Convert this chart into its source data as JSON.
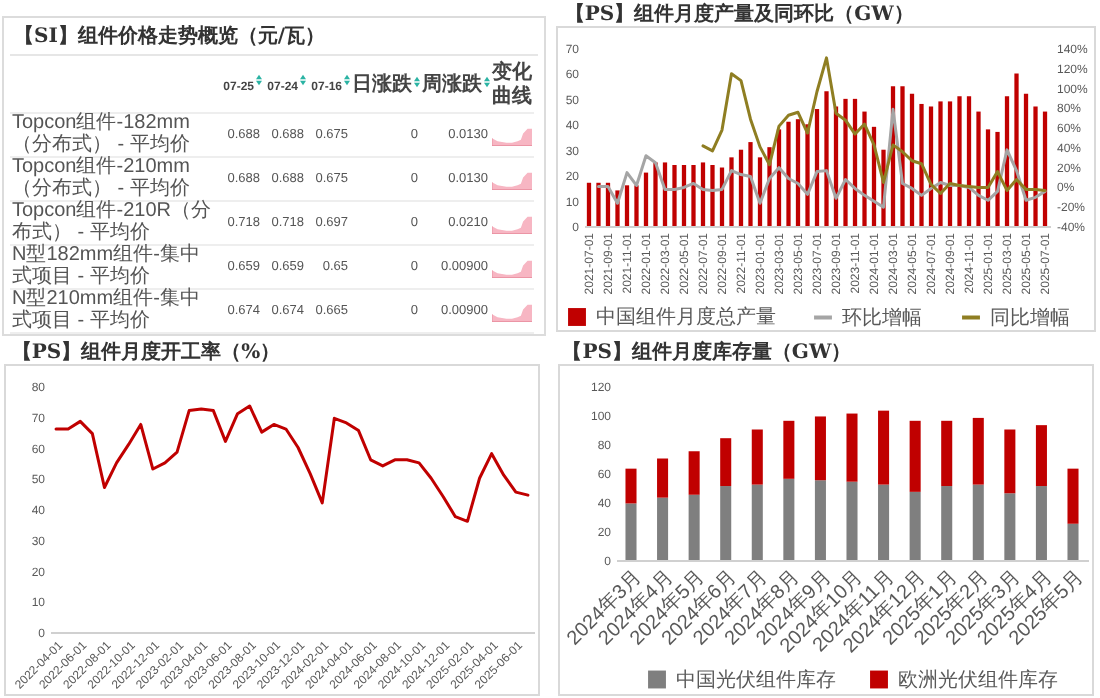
{
  "chart_data": [
    {
      "type": "other",
      "title": "【SI】组件价格走势概览（元/瓦）",
      "categories": [
        "07-25",
        "07-24",
        "07-16",
        "日涨跌",
        "周涨跌",
        "变化曲线"
      ],
      "y_categories": [
        "Topcon组件-182mm（分布式） - 平均价",
        "Topcon组件-210mm（分布式） - 平均价",
        "Topcon组件-210R（分布式） - 平均价",
        "N型182mm组件-集中式项目 - 平均价",
        "N型210mm组件-集中式项目 - 平均价"
      ],
      "cell_labels": [
        [
          "0.688",
          "0.688",
          "0.675",
          "0",
          "0.0130",
          null
        ],
        [
          "0.688",
          "0.688",
          "0.675",
          "0",
          "0.0130",
          null
        ],
        [
          "0.718",
          "0.718",
          "0.697",
          "0",
          "0.0210",
          null
        ],
        [
          "0.659",
          "0.659",
          "0.65",
          "0",
          "0.00900",
          null
        ],
        [
          "0.674",
          "0.674",
          "0.665",
          "0",
          "0.00900",
          null
        ]
      ]
    },
    {
      "type": "bar",
      "title": "【PS】组件月度产量及同环比（GW）",
      "categories": [
        "2021-07-01",
        null,
        "2021-09-01",
        null,
        "2021-11-01",
        null,
        "2022-01-01",
        null,
        "2022-03-01",
        null,
        "2022-05-01",
        null,
        "2022-07-01",
        null,
        "2022-09-01",
        null,
        "2022-11-01",
        null,
        "2023-01-01",
        null,
        "2023-03-01",
        null,
        "2023-05-01",
        null,
        "2023-07-01",
        null,
        "2023-09-01",
        null,
        "2023-11-01",
        null,
        "2024-01-01",
        null,
        "2024-03-01",
        null,
        "2024-05-01",
        null,
        "2024-07-01",
        null,
        "2024-09-01",
        null,
        "2024-11-01",
        null,
        "2025-01-01",
        null,
        "2025-03-01",
        null,
        "2025-05-01",
        null,
        "2025-07-01"
      ],
      "series": [
        {
          "name": "中国组件月度总产量",
          "type": "bar",
          "color": "#c00000",
          "values": [
            17,
            17,
            17,
            14,
            16,
            16,
            21,
            25,
            25,
            24,
            24,
            24,
            25,
            24,
            23,
            27,
            30,
            33,
            27,
            31,
            38,
            41,
            42,
            40,
            46,
            53,
            47,
            50,
            50,
            45,
            39,
            30,
            55,
            55,
            52,
            48,
            47,
            49,
            49,
            51,
            51,
            45,
            38,
            37,
            51,
            60,
            52,
            47,
            45
          ]
        },
        {
          "name": "环比增幅",
          "type": "line",
          "axis": "y2",
          "color": "#a5a5a5",
          "values": [
            null,
            0,
            0,
            -17,
            14,
            1,
            31,
            24,
            -3,
            -3,
            -1,
            3,
            -3,
            -4,
            -3,
            16,
            12,
            10,
            -17,
            8,
            19,
            8,
            3,
            -8,
            15,
            16,
            -12,
            7,
            -2,
            -9,
            -15,
            -21,
            78,
            3,
            -2,
            -9,
            -2,
            4,
            1,
            1,
            -1,
            -9,
            -14,
            -5,
            37,
            16,
            -14,
            -11,
            -5
          ]
        },
        {
          "name": "同比增幅",
          "type": "line",
          "axis": "y2",
          "color": "#8f7e22",
          "values": [
            null,
            null,
            null,
            null,
            null,
            null,
            null,
            null,
            null,
            null,
            null,
            null,
            41,
            36,
            57,
            114,
            107,
            68,
            40,
            22,
            61,
            72,
            75,
            54,
            96,
            130,
            74,
            67,
            53,
            63,
            42,
            4,
            42,
            35,
            26,
            23,
            2,
            -7,
            3,
            1,
            0,
            -1,
            -1,
            15,
            -4,
            7,
            -3,
            -3,
            -4
          ]
        }
      ],
      "ylim": [
        0,
        70
      ],
      "yticks": [
        0,
        10,
        20,
        30,
        40,
        50,
        60,
        70
      ],
      "y2lim": [
        -40,
        140
      ],
      "y2ticks": [
        {
          "value": -40,
          "label": "-40%"
        },
        {
          "value": -20,
          "label": "-20%"
        },
        {
          "value": 0,
          "label": "0%"
        },
        {
          "value": 20,
          "label": "20%"
        },
        {
          "value": 40,
          "label": "40%"
        },
        {
          "value": 60,
          "label": "60%"
        },
        {
          "value": 80,
          "label": "80%"
        },
        {
          "value": 100,
          "label": "100%"
        },
        {
          "value": 120,
          "label": "120%"
        },
        {
          "value": 140,
          "label": "140%"
        }
      ],
      "legend": "bottom"
    },
    {
      "type": "line",
      "title": "【PS】组件月度开工率（%）",
      "categories": [
        "2022-04-01",
        null,
        "2022-06-01",
        null,
        "2022-08-01",
        null,
        "2022-10-01",
        null,
        "2022-12-01",
        null,
        "2023-02-01",
        null,
        "2023-04-01",
        null,
        "2023-06-01",
        null,
        "2023-08-01",
        null,
        "2023-10-01",
        null,
        "2023-12-01",
        null,
        "2024-02-01",
        null,
        "2024-04-01",
        null,
        "2024-06-01",
        null,
        "2024-08-01",
        null,
        "2024-10-01",
        null,
        "2024-12-01",
        null,
        "2025-02-01",
        null,
        "2025-04-01",
        null,
        "2025-06-01",
        null
      ],
      "color": "#c00000",
      "values": [
        66,
        66,
        68.5,
        64.5,
        47,
        55,
        61,
        67.5,
        53,
        55,
        58.5,
        72,
        72.5,
        72,
        62,
        71,
        73.5,
        65,
        67.5,
        66,
        60,
        51.5,
        42,
        69.5,
        68,
        65.5,
        56,
        54,
        56,
        56,
        55,
        50,
        44,
        37.5,
        36,
        50,
        58,
        51,
        45.5,
        44.5
      ],
      "ylim": [
        0,
        80
      ],
      "yticks": [
        0,
        10,
        20,
        30,
        40,
        50,
        60,
        70,
        80
      ]
    },
    {
      "type": "bar",
      "stacked": true,
      "title": "【PS】组件月度库存量（GW）",
      "categories": [
        "2024年3月",
        "2024年4月",
        "2024年5月",
        "2024年6月",
        "2024年7月",
        "2024年8月",
        "2024年9月",
        "2024年10月",
        "2024年11月",
        "2024年12月",
        "2025年1月",
        "2025年2月",
        "2025年3月",
        "2025年4月",
        "2025年5月"
      ],
      "series": [
        {
          "name": "中国光伏组件库存",
          "color": "#7f7f7f",
          "values": [
            39,
            43,
            45,
            51,
            52,
            56,
            55,
            54,
            52,
            47,
            51,
            52,
            46,
            51,
            25
          ]
        },
        {
          "name": "欧洲光伏组件库存",
          "color": "#c00000",
          "values": [
            24,
            27,
            30,
            33,
            38,
            40,
            44,
            47,
            51,
            49,
            45,
            46,
            44,
            42,
            38
          ]
        }
      ],
      "ylim": [
        0,
        120
      ],
      "yticks": [
        0,
        20,
        40,
        60,
        80,
        100,
        120
      ],
      "legend": "bottom"
    }
  ]
}
